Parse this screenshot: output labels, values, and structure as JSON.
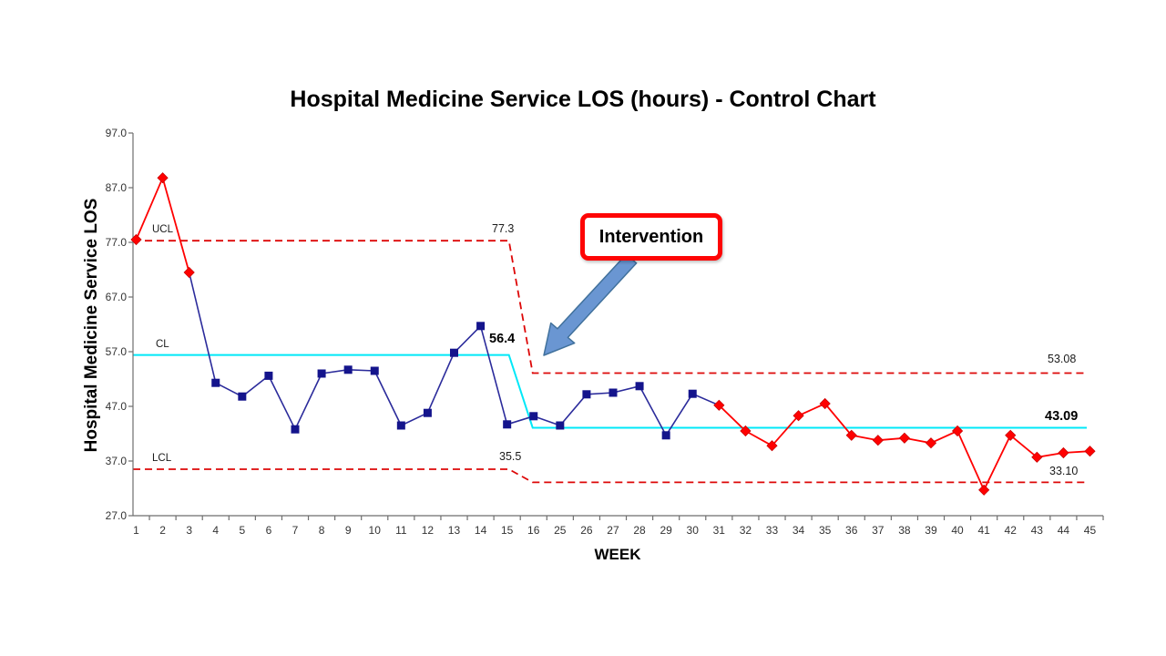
{
  "title": "Hospital Medicine Service LOS (hours) - Control Chart",
  "annotation": {
    "label": "Intervention"
  },
  "colors": {
    "navy_marker": "#14148c",
    "navy_line": "#2b2b9b",
    "red_marker": "#ff0000",
    "red_line": "#ff0000",
    "red_dashed": "#dd0707",
    "cyan_cl": "#00e8f8",
    "arrow_fill": "#6a96d2",
    "arrow_stroke": "#41719c",
    "axis": "#6e6e6e",
    "box_border": "#fe0505"
  },
  "chart_data": {
    "type": "line",
    "title": "Hospital Medicine Service LOS (hours) - Control Chart",
    "xlabel": "WEEK",
    "ylabel": "Hospital Medicine Service LOS",
    "ylim": [
      27.0,
      97.0
    ],
    "y_ticks": [
      "97.0",
      "87.0",
      "77.0",
      "67.0",
      "57.0",
      "47.0",
      "37.0",
      "27.0"
    ],
    "grid": false,
    "legend": false,
    "categories": [
      "1",
      "2",
      "3",
      "4",
      "5",
      "6",
      "7",
      "8",
      "9",
      "10",
      "11",
      "12",
      "13",
      "14",
      "15",
      "16",
      "25",
      "26",
      "27",
      "28",
      "29",
      "30",
      "31",
      "32",
      "33",
      "34",
      "35",
      "36",
      "37",
      "38",
      "39",
      "40",
      "41",
      "42",
      "43",
      "44",
      "45"
    ],
    "series": [
      {
        "name": "Hospital Medicine Service LOS",
        "values": [
          77.5,
          88.8,
          71.5,
          51.3,
          48.8,
          52.6,
          42.8,
          53.0,
          53.7,
          53.5,
          43.5,
          45.8,
          56.8,
          61.7,
          43.7,
          45.2,
          43.5,
          49.2,
          49.5,
          50.7,
          41.7,
          49.3,
          47.2,
          42.5,
          39.8,
          45.3,
          47.5,
          41.7,
          40.8,
          41.2,
          40.3,
          42.5,
          31.7,
          41.7,
          37.7,
          38.5,
          38.8
        ],
        "marker_colors": [
          "red",
          "red",
          "red",
          "navy",
          "navy",
          "navy",
          "navy",
          "navy",
          "navy",
          "navy",
          "navy",
          "navy",
          "navy",
          "navy",
          "navy",
          "navy",
          "navy",
          "navy",
          "navy",
          "navy",
          "navy",
          "navy",
          "red",
          "red",
          "red",
          "red",
          "red",
          "red",
          "red",
          "red",
          "red",
          "red",
          "red",
          "red",
          "red",
          "red",
          "red"
        ],
        "marker_shapes": {
          "navy": "square",
          "red": "diamond"
        }
      }
    ],
    "control_limits": {
      "phase1": {
        "ucl": 77.3,
        "cl": 56.4,
        "lcl": 35.5
      },
      "phase2": {
        "ucl": 53.08,
        "cl": 43.09,
        "lcl": 33.1
      },
      "transition_start_index": 14,
      "transition_end_index": 15
    },
    "limit_labels": {
      "ucl_text": "UCL",
      "cl_text": "CL",
      "lcl_text": "LCL",
      "phase1_ucl": "77.3",
      "phase1_cl": "56.4",
      "phase1_lcl": "35.5",
      "phase2_ucl": "53.08",
      "phase2_cl": "43.09",
      "phase2_lcl": "33.10"
    }
  }
}
